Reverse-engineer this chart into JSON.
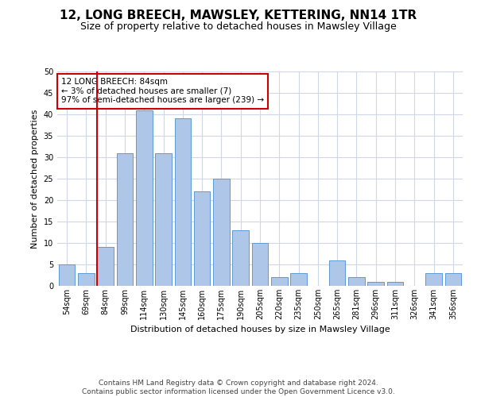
{
  "title": "12, LONG BREECH, MAWSLEY, KETTERING, NN14 1TR",
  "subtitle": "Size of property relative to detached houses in Mawsley Village",
  "xlabel": "Distribution of detached houses by size in Mawsley Village",
  "ylabel": "Number of detached properties",
  "categories": [
    "54sqm",
    "69sqm",
    "84sqm",
    "99sqm",
    "114sqm",
    "130sqm",
    "145sqm",
    "160sqm",
    "175sqm",
    "190sqm",
    "205sqm",
    "220sqm",
    "235sqm",
    "250sqm",
    "265sqm",
    "281sqm",
    "296sqm",
    "311sqm",
    "326sqm",
    "341sqm",
    "356sqm"
  ],
  "values": [
    5,
    3,
    9,
    31,
    41,
    31,
    39,
    22,
    25,
    13,
    10,
    2,
    3,
    0,
    6,
    2,
    1,
    1,
    0,
    3,
    3
  ],
  "bar_color": "#aec6e8",
  "bar_edge_color": "#5b9bd5",
  "highlight_index": 2,
  "highlight_color": "#cc0000",
  "ylim": [
    0,
    50
  ],
  "yticks": [
    0,
    5,
    10,
    15,
    20,
    25,
    30,
    35,
    40,
    45,
    50
  ],
  "annotation_box_text": "12 LONG BREECH: 84sqm\n← 3% of detached houses are smaller (7)\n97% of semi-detached houses are larger (239) →",
  "annotation_box_color": "#cc0000",
  "footer_line1": "Contains HM Land Registry data © Crown copyright and database right 2024.",
  "footer_line2": "Contains public sector information licensed under the Open Government Licence v3.0.",
  "background_color": "#ffffff",
  "grid_color": "#d0d8e8",
  "title_fontsize": 11,
  "subtitle_fontsize": 9,
  "ylabel_fontsize": 8,
  "xlabel_fontsize": 8,
  "tick_fontsize": 7,
  "footer_fontsize": 6.5,
  "ann_fontsize": 7.5
}
